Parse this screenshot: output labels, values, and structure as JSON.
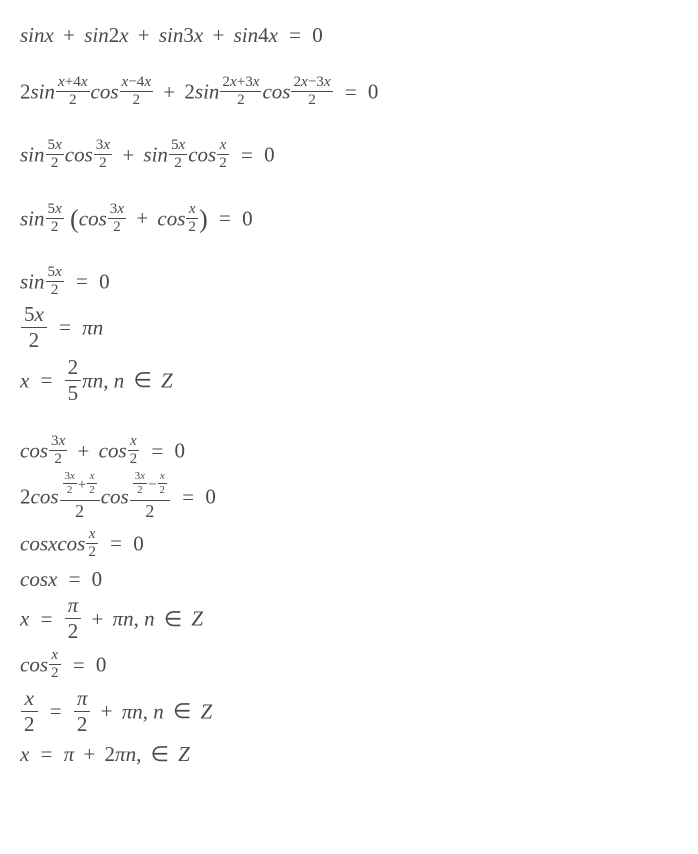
{
  "font": {
    "family": "Times New Roman (italic)",
    "size_pt_base": 21,
    "color": "#4a4a4a"
  },
  "background_color": "#ffffff",
  "lines": {
    "l1": "sinx + sin2x + sin3x + sin4x = 0",
    "l2": {
      "lhs": "2sin((x+4x)/2)cos((x−4x)/2) + 2sin((2x+3x)/2)cos((2x−3x)/2)",
      "rhs": "0"
    },
    "l3": {
      "lhs": "sin(5x/2)cos(3x/2) + sin(5x/2)cos(x/2)",
      "rhs": "0"
    },
    "l4": {
      "lhs": "sin(5x/2)(cos(3x/2) + cos(x/2))",
      "rhs": "0"
    },
    "g5a": "sin(5x/2) = 0",
    "g5b": "5x/2 = πn",
    "g5c": "x = (2/5)πn, n ∈ Z",
    "g6a": "cos(3x/2) + cos(x/2) = 0",
    "g6b": "2cos(((3x/2)+(x/2))/2)cos(((3x/2)−(x/2))/2) = 0",
    "g6c": "cosx cos(x/2) = 0",
    "g6d": "cosx = 0",
    "g6e": "x = π/2 + πn, n ∈ Z",
    "g6f": "cos(x/2) = 0",
    "g6g": "x/2 = π/2 + πn, n ∈ Z",
    "g6h": "x = π + 2πn, ∈ Z"
  },
  "tokens": {
    "sin": "sin",
    "cos": "cos",
    "x": "x",
    "two": "2",
    "three": "3",
    "four": "4",
    "five": "5",
    "plus": "+",
    "minus": "−",
    "eq": "=",
    "zero": "0",
    "pi": "π",
    "n": "n",
    "in": "∈",
    "Z": "Z",
    "comma": ","
  }
}
